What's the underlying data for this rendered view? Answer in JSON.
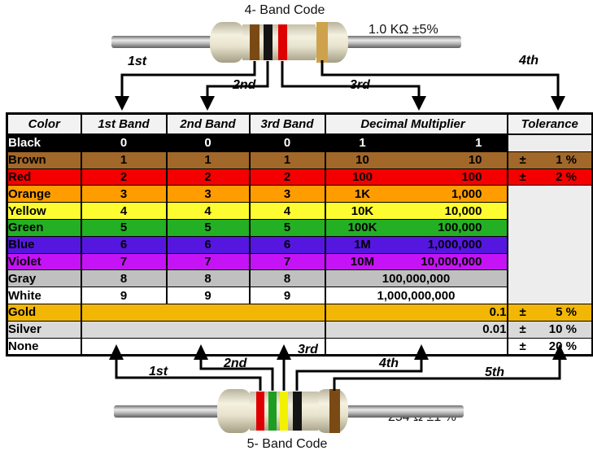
{
  "figure": {
    "top": {
      "title": "4- Band Code",
      "value_label": "1.0 KΩ  ±5%",
      "band_colors": [
        "brown",
        "black",
        "red",
        "gold"
      ],
      "arrow_labels": [
        "1st",
        "2nd",
        "3rd",
        "4th"
      ]
    },
    "bottom": {
      "title": "5- Band Code",
      "value_label": "254 Ω  ±1 %",
      "band_colors": [
        "red",
        "green",
        "yellow",
        "black",
        "brown"
      ],
      "arrow_labels": [
        "1st",
        "2nd",
        "3rd",
        "4th",
        "5th"
      ]
    }
  },
  "table": {
    "headers": [
      "Color",
      "1st Band",
      "2nd Band",
      "3rd Band",
      "Decimal Multiplier",
      "Tolerance"
    ],
    "rows": [
      {
        "color": "Black",
        "bg": "#000000",
        "fg": "#FFFFFF",
        "bands": [
          "0",
          "0",
          "0"
        ],
        "mult_short": "1",
        "mult_full": "1",
        "tol_sign": null,
        "tol_value": null
      },
      {
        "color": "Brown",
        "bg": "#A26829",
        "fg": "#000000",
        "bands": [
          "1",
          "1",
          "1"
        ],
        "mult_short": "10",
        "mult_full": "10",
        "tol_sign": "±",
        "tol_value": "1 %"
      },
      {
        "color": "Red",
        "bg": "#F40000",
        "fg": "#000000",
        "bands": [
          "2",
          "2",
          "2"
        ],
        "mult_short": "100",
        "mult_full": "100",
        "tol_sign": "±",
        "tol_value": "2 %"
      },
      {
        "color": "Orange",
        "bg": "#FF9D00",
        "fg": "#000000",
        "bands": [
          "3",
          "3",
          "3"
        ],
        "mult_short": "1K",
        "mult_full": "1,000",
        "tol_sign": null,
        "tol_value": null
      },
      {
        "color": "Yellow",
        "bg": "#FCFC30",
        "fg": "#000000",
        "bands": [
          "4",
          "4",
          "4"
        ],
        "mult_short": "10K",
        "mult_full": "10,000",
        "tol_sign": null,
        "tol_value": null
      },
      {
        "color": "Green",
        "bg": "#24B024",
        "fg": "#000000",
        "bands": [
          "5",
          "5",
          "5"
        ],
        "mult_short": "100K",
        "mult_full": "100,000",
        "tol_sign": null,
        "tol_value": null
      },
      {
        "color": "Blue",
        "bg": "#5517E0",
        "fg": "#000000",
        "bands": [
          "6",
          "6",
          "6"
        ],
        "mult_short": "1M",
        "mult_full": "1,000,000",
        "tol_sign": null,
        "tol_value": null
      },
      {
        "color": "Violet",
        "bg": "#C414F6",
        "fg": "#000000",
        "bands": [
          "7",
          "7",
          "7"
        ],
        "mult_short": "10M",
        "mult_full": "10,000,000",
        "tol_sign": null,
        "tol_value": null
      },
      {
        "color": "Gray",
        "bg": "#C0C0C0",
        "fg": "#000000",
        "bands": [
          "8",
          "8",
          "8"
        ],
        "mult_center": "100,000,000",
        "tol_sign": null,
        "tol_value": null
      },
      {
        "color": "White",
        "bg": "#FFFFFF",
        "fg": "#000000",
        "bands": [
          "9",
          "9",
          "9"
        ],
        "mult_center": "1,000,000,000",
        "tol_sign": null,
        "tol_value": null
      },
      {
        "color": "Gold",
        "bg": "#F2B705",
        "fg": "#000000",
        "bands": null,
        "mult_right": "0.1",
        "tol_sign": "±",
        "tol_value": "5 %"
      },
      {
        "color": "Silver",
        "bg": "#D9D9D9",
        "fg": "#000000",
        "bands": null,
        "mult_right": "0.01",
        "tol_sign": "±",
        "tol_value": "10 %"
      },
      {
        "color": "None",
        "bg": "#FFFFFF",
        "fg": "#000000",
        "bands": null,
        "mult_right": "",
        "tol_sign": "±",
        "tol_value": "20 %"
      }
    ]
  },
  "colors": {
    "band_hex": {
      "brown": "#7B4A14",
      "black": "#141414",
      "red": "#DE0000",
      "gold": "#CEA24C",
      "green": "#1E9E20",
      "yellow": "#F2F200"
    },
    "empty_tolerance_bg": "#EDEDED",
    "header_bg": "#F2F2F2"
  }
}
